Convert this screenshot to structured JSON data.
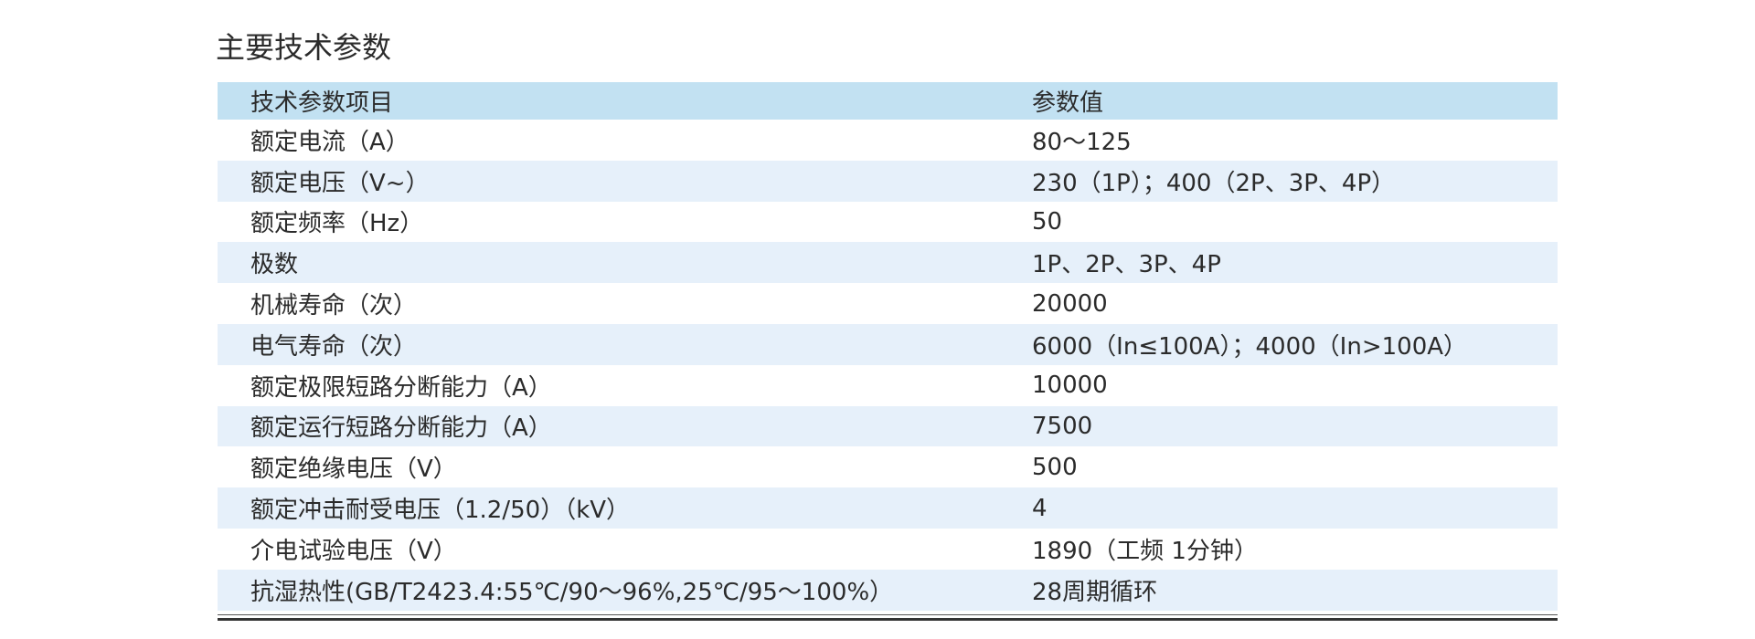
{
  "title": "主要技术参数",
  "table": {
    "headers": [
      "技术参数项目",
      "参数值"
    ],
    "rows": [
      [
        "额定电流（A）",
        "80～125"
      ],
      [
        "额定电压（V~）",
        "230（1P）；400（2P、3P、4P）"
      ],
      [
        "额定频率（Hz）",
        "50"
      ],
      [
        "极数",
        "1P、2P、3P、4P"
      ],
      [
        "机械寿命（次）",
        "20000"
      ],
      [
        "电气寿命（次）",
        "6000（In≤100A）；4000（In>100A）"
      ],
      [
        "额定极限短路分断能力（A）",
        "10000"
      ],
      [
        "额定运行短路分断能力（A）",
        "7500"
      ],
      [
        "额定绝缘电压（V）",
        "500"
      ],
      [
        "额定冲击耐受电压（1.2/50）（kV）",
        "4"
      ],
      [
        "介电试验电压（V）",
        "1890（工频 1分钟）"
      ],
      [
        "抗湿热性(GB/T2423.4:55℃/90～96%,25℃/95～100%）",
        "28周期循环"
      ]
    ]
  },
  "colors": {
    "header_bg": "#c2e1f2",
    "stripe_bg": "#e6f0fa"
  }
}
